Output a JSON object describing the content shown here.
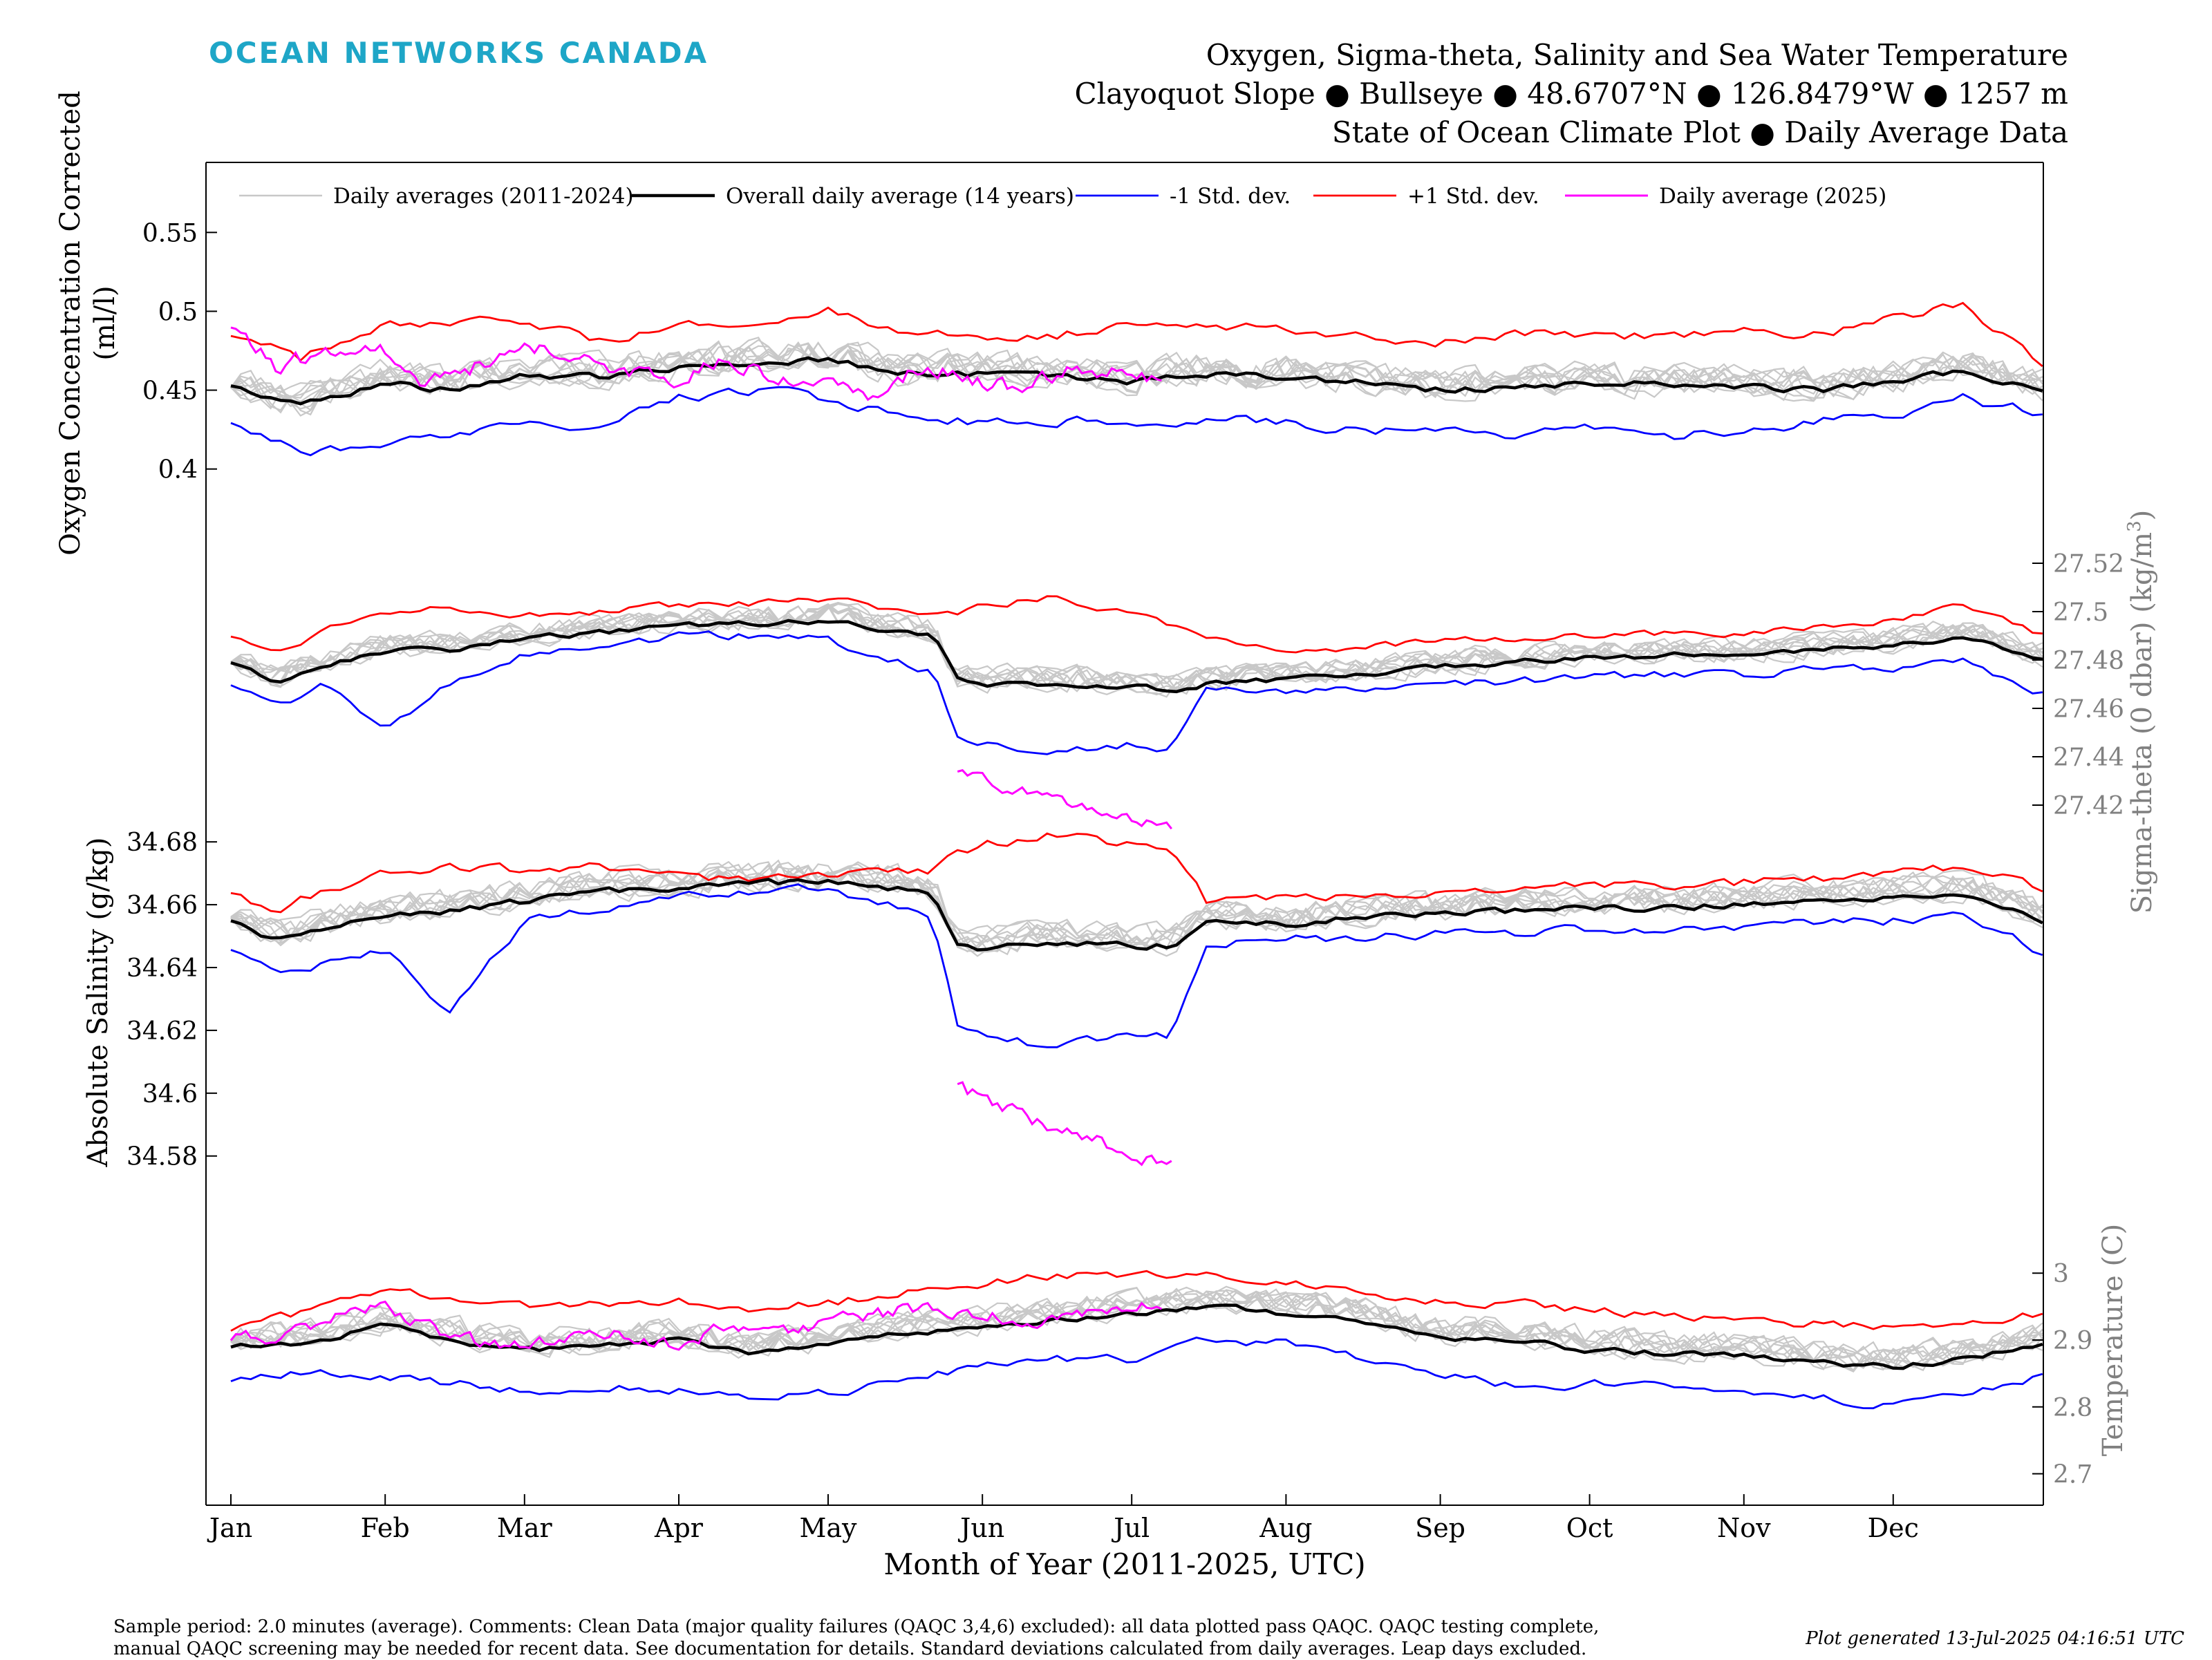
{
  "brand": "OCEAN NETWORKS CANADA",
  "title_lines": [
    "Oxygen, Sigma-theta, Salinity and Sea Water Temperature",
    "Clayoquot Slope ● Bullseye ● 48.6707°N ● 126.8479°W ● 1257 m",
    "State of Ocean Climate Plot ● Daily Average Data"
  ],
  "footer": {
    "line1": "Sample period: 2.0 minutes (average). Comments: Clean Data (major quality failures (QAQC 3,4,6) excluded): all data plotted pass QAQC. QAQC testing complete,",
    "line2": "manual QAQC screening may be needed for recent data. See documentation for details. Standard deviations calculated from daily averages. Leap days excluded.",
    "generated": "Plot generated 13-Jul-2025 04:16:51 UTC"
  },
  "colors": {
    "historical": "#c8c8c8",
    "mean": "#000000",
    "minus_sd": "#0000ff",
    "plus_sd": "#ff0000",
    "current": "#ff00ff",
    "right_axis": "#808080"
  },
  "chart_data": {
    "type": "line",
    "xlabel": "Month of Year (2011-2025, UTC)",
    "x_range_day_of_year": [
      1,
      365
    ],
    "x_ticks": [
      "Jan",
      "Feb",
      "Mar",
      "Apr",
      "May",
      "Jun",
      "Jul",
      "Aug",
      "Sep",
      "Oct",
      "Nov",
      "Dec"
    ],
    "x_tick_days": [
      1,
      32,
      60,
      91,
      121,
      152,
      182,
      213,
      244,
      274,
      305,
      335
    ],
    "legend": [
      "Daily averages (2011-2024)",
      "Overall daily average (14 years)",
      "-1 Std. dev.",
      "+1 Std. dev.",
      "Daily average (2025)"
    ],
    "legend_position": "top",
    "grid": false,
    "panels": [
      {
        "variable": "oxygen",
        "ylabel": "Oxygen Concentration Corrected (ml/l)",
        "ylabel_lines": [
          "Oxygen Concentration Corrected",
          "(ml/l)"
        ],
        "axis_side": "left",
        "ylim": [
          0.3556,
          0.5944
        ],
        "yticks": [
          0.4,
          0.45,
          0.5,
          0.55
        ],
        "ytick_labels": [
          "0.4",
          "0.45",
          "0.5",
          "0.55"
        ],
        "historical_count": 10,
        "mean_days": [
          1,
          15,
          32,
          45,
          60,
          75,
          91,
          105,
          121,
          135,
          152,
          166,
          182,
          197,
          213,
          228,
          244,
          259,
          274,
          290,
          305,
          320,
          335,
          349,
          365
        ],
        "mean": [
          0.453,
          0.44,
          0.455,
          0.45,
          0.46,
          0.458,
          0.465,
          0.468,
          0.47,
          0.46,
          0.46,
          0.458,
          0.455,
          0.46,
          0.458,
          0.455,
          0.45,
          0.452,
          0.455,
          0.453,
          0.452,
          0.45,
          0.455,
          0.462,
          0.45
        ],
        "minus_sd": [
          0.43,
          0.41,
          0.415,
          0.42,
          0.43,
          0.425,
          0.445,
          0.45,
          0.445,
          0.435,
          0.43,
          0.43,
          0.43,
          0.432,
          0.43,
          0.425,
          0.425,
          0.42,
          0.425,
          0.42,
          0.425,
          0.43,
          0.435,
          0.445,
          0.435
        ],
        "plus_sd": [
          0.485,
          0.47,
          0.49,
          0.49,
          0.495,
          0.48,
          0.49,
          0.495,
          0.5,
          0.485,
          0.485,
          0.485,
          0.49,
          0.49,
          0.49,
          0.485,
          0.48,
          0.485,
          0.485,
          0.485,
          0.49,
          0.485,
          0.495,
          0.505,
          0.465
        ],
        "current_days": [
          1,
          10,
          20,
          32,
          40,
          50,
          60,
          70,
          80,
          91,
          100,
          110,
          121,
          130,
          140,
          152,
          160,
          170,
          182,
          188
        ],
        "current": [
          0.49,
          0.465,
          0.475,
          0.475,
          0.455,
          0.465,
          0.48,
          0.47,
          0.462,
          0.455,
          0.47,
          0.46,
          0.455,
          0.445,
          0.465,
          0.455,
          0.45,
          0.465,
          0.46,
          0.455
        ]
      },
      {
        "variable": "sigma_theta",
        "ylabel": "Sigma-theta (0 dbar) (kg/m3)",
        "ylabel_lines": [
          "Sigma-theta (0 dbar) (kg/m",
          "3",
          ")"
        ],
        "axis_side": "right",
        "ylim": [
          27.41,
          27.53
        ],
        "yticks": [
          27.42,
          27.44,
          27.46,
          27.48,
          27.5,
          27.52
        ],
        "ytick_labels": [
          "27.42",
          "27.44",
          "27.46",
          "27.48",
          "27.5",
          "27.52"
        ],
        "historical_count": 10,
        "mean_days": [
          1,
          10,
          20,
          32,
          45,
          60,
          75,
          91,
          105,
          121,
          135,
          142,
          147,
          152,
          166,
          182,
          190,
          197,
          213,
          228,
          244,
          259,
          274,
          290,
          305,
          320,
          335,
          349,
          365
        ],
        "mean": [
          27.479,
          27.471,
          27.478,
          27.484,
          27.484,
          27.489,
          27.491,
          27.494,
          27.495,
          27.496,
          27.492,
          27.49,
          27.472,
          27.47,
          27.47,
          27.469,
          27.467,
          27.47,
          27.472,
          27.474,
          27.477,
          27.479,
          27.481,
          27.482,
          27.482,
          27.484,
          27.486,
          27.49,
          27.48
        ],
        "minus_sd": [
          27.47,
          27.46,
          27.47,
          27.45,
          27.47,
          27.482,
          27.485,
          27.49,
          27.49,
          27.488,
          27.48,
          27.475,
          27.448,
          27.445,
          27.442,
          27.445,
          27.443,
          27.468,
          27.467,
          27.467,
          27.47,
          27.471,
          27.473,
          27.474,
          27.474,
          27.477,
          27.477,
          27.48,
          27.466
        ],
        "plus_sd": [
          27.49,
          27.483,
          27.493,
          27.5,
          27.503,
          27.498,
          27.5,
          27.502,
          27.503,
          27.505,
          27.5,
          27.5,
          27.5,
          27.502,
          27.506,
          27.5,
          27.495,
          27.49,
          27.484,
          27.485,
          27.488,
          27.489,
          27.49,
          27.491,
          27.491,
          27.493,
          27.496,
          27.502,
          27.49
        ],
        "current_days": [
          147,
          152,
          158,
          164,
          170,
          176,
          182,
          190
        ],
        "current": [
          27.434,
          27.43,
          27.426,
          27.424,
          27.42,
          27.418,
          27.414,
          27.41
        ]
      },
      {
        "variable": "salinity",
        "ylabel": "Absolute Salinity (g/kg)",
        "ylabel_lines": [
          "Absolute Salinity (g/kg)"
        ],
        "axis_side": "left",
        "ylim": [
          34.574,
          34.684
        ],
        "yticks": [
          34.58,
          34.6,
          34.62,
          34.64,
          34.66,
          34.68
        ],
        "ytick_labels": [
          "34.58",
          "34.6",
          "34.62",
          "34.64",
          "34.66",
          "34.68"
        ],
        "historical_count": 10,
        "mean_days": [
          1,
          10,
          20,
          32,
          45,
          60,
          75,
          91,
          105,
          121,
          135,
          142,
          147,
          152,
          166,
          182,
          190,
          197,
          213,
          228,
          244,
          259,
          274,
          290,
          305,
          320,
          335,
          349,
          365
        ],
        "mean": [
          34.655,
          34.648,
          34.652,
          34.656,
          34.658,
          34.661,
          34.664,
          34.665,
          34.667,
          34.667,
          34.665,
          34.663,
          34.648,
          34.646,
          34.648,
          34.647,
          34.647,
          34.654,
          34.654,
          34.656,
          34.657,
          34.658,
          34.659,
          34.659,
          34.66,
          34.661,
          34.663,
          34.664,
          34.655
        ],
        "minus_sd": [
          34.646,
          34.638,
          34.641,
          34.645,
          34.625,
          34.655,
          34.658,
          34.662,
          34.664,
          34.665,
          34.66,
          34.655,
          34.622,
          34.618,
          34.615,
          34.619,
          34.618,
          34.647,
          34.649,
          34.649,
          34.651,
          34.651,
          34.652,
          34.652,
          34.653,
          34.654,
          34.655,
          34.656,
          34.645
        ],
        "plus_sd": [
          34.664,
          34.658,
          34.665,
          34.67,
          34.672,
          34.671,
          34.672,
          34.669,
          34.668,
          34.669,
          34.67,
          34.671,
          34.676,
          34.679,
          34.682,
          34.679,
          34.677,
          34.661,
          34.662,
          34.663,
          34.664,
          34.665,
          34.666,
          34.666,
          34.667,
          34.668,
          34.67,
          34.672,
          34.665
        ],
        "current_days": [
          147,
          152,
          158,
          164,
          170,
          176,
          182,
          190
        ],
        "current": [
          34.603,
          34.598,
          34.594,
          34.59,
          34.587,
          34.584,
          34.581,
          34.577
        ]
      },
      {
        "variable": "temperature",
        "ylabel": "Temperature (C)",
        "ylabel_lines": [
          "Temperature (C)"
        ],
        "axis_side": "right",
        "ylim": [
          2.653,
          3.147
        ],
        "yticks": [
          2.7,
          2.8,
          2.9,
          3
        ],
        "ytick_labels": [
          "2.7",
          "2.8",
          "2.9",
          "3"
        ],
        "historical_count": 10,
        "mean_days": [
          1,
          15,
          32,
          45,
          60,
          75,
          91,
          105,
          121,
          135,
          152,
          166,
          182,
          197,
          213,
          228,
          244,
          259,
          274,
          290,
          305,
          320,
          335,
          349,
          365
        ],
        "mean": [
          2.89,
          2.895,
          2.92,
          2.9,
          2.885,
          2.89,
          2.9,
          2.88,
          2.89,
          2.91,
          2.915,
          2.93,
          2.94,
          2.95,
          2.94,
          2.93,
          2.9,
          2.9,
          2.885,
          2.88,
          2.875,
          2.865,
          2.86,
          2.87,
          2.895
        ],
        "minus_sd": [
          2.84,
          2.85,
          2.845,
          2.835,
          2.825,
          2.83,
          2.825,
          2.815,
          2.82,
          2.84,
          2.86,
          2.87,
          2.87,
          2.9,
          2.895,
          2.875,
          2.85,
          2.83,
          2.835,
          2.83,
          2.825,
          2.815,
          2.8,
          2.815,
          2.845
        ],
        "plus_sd": [
          2.915,
          2.94,
          2.98,
          2.965,
          2.95,
          2.955,
          2.96,
          2.945,
          2.955,
          2.97,
          2.985,
          2.995,
          3.0,
          2.995,
          2.99,
          2.975,
          2.955,
          2.955,
          2.945,
          2.935,
          2.93,
          2.925,
          2.92,
          2.93,
          2.94
        ],
        "current_days": [
          1,
          10,
          20,
          32,
          40,
          50,
          60,
          70,
          80,
          91,
          100,
          110,
          121,
          130,
          140,
          152,
          160,
          170,
          182,
          188
        ],
        "current": [
          2.9,
          2.905,
          2.93,
          2.955,
          2.92,
          2.9,
          2.89,
          2.91,
          2.905,
          2.895,
          2.92,
          2.91,
          2.93,
          2.935,
          2.95,
          2.94,
          2.925,
          2.935,
          2.95,
          2.945
        ]
      }
    ]
  }
}
